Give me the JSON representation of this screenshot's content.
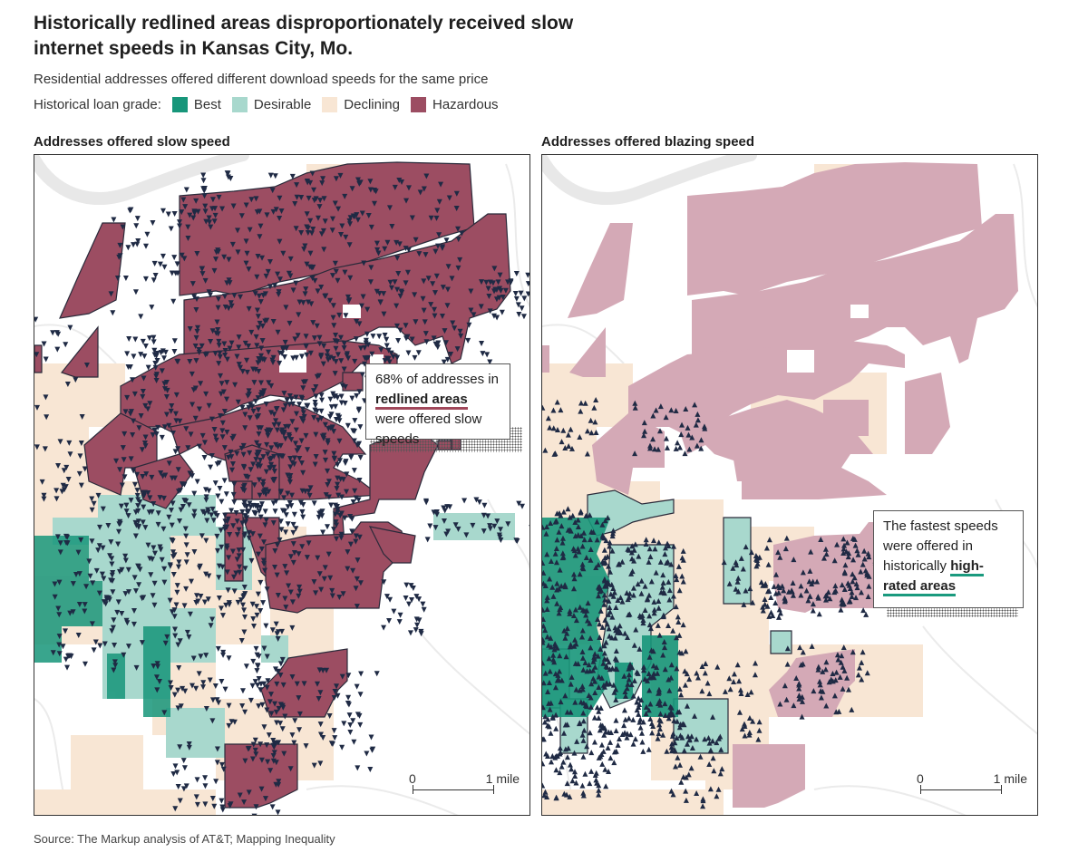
{
  "title": "Historically redlined areas disproportionately received slow internet speeds in Kansas City, Mo.",
  "subtitle": "Residential addresses offered different download speeds for the same price",
  "legend": {
    "label": "Historical loan grade:",
    "items": [
      {
        "label": "Best",
        "color": "#17967a"
      },
      {
        "label": "Desirable",
        "color": "#a8d8cd"
      },
      {
        "label": "Declining",
        "color": "#f8e6d4"
      },
      {
        "label": "Hazardous",
        "color": "#9c4d62"
      }
    ]
  },
  "panels": {
    "left": {
      "title": "Addresses offered slow speed",
      "callout": {
        "before": "68% of addresses in",
        "highlight": "redlined areas",
        "after": "were offered slow speeds"
      },
      "scale": {
        "start": "0",
        "end": "1 mile"
      }
    },
    "right": {
      "title": "Addresses offered blazing speed",
      "callout": {
        "before": "The fastest speeds were offered in historically",
        "highlight": "high-rated areas",
        "after": ""
      },
      "scale": {
        "start": "0",
        "end": "1 mile"
      }
    }
  },
  "source": "Source: The Markup analysis of AT&T; Mapping Inequality",
  "colors": {
    "best": "#17967a",
    "desirable": "#a8d8cd",
    "declining": "#f8e6d4",
    "hazardous": "#9c4d62",
    "hazardous_faded": "#d4a9b6",
    "marker": "#1f2a44"
  }
}
